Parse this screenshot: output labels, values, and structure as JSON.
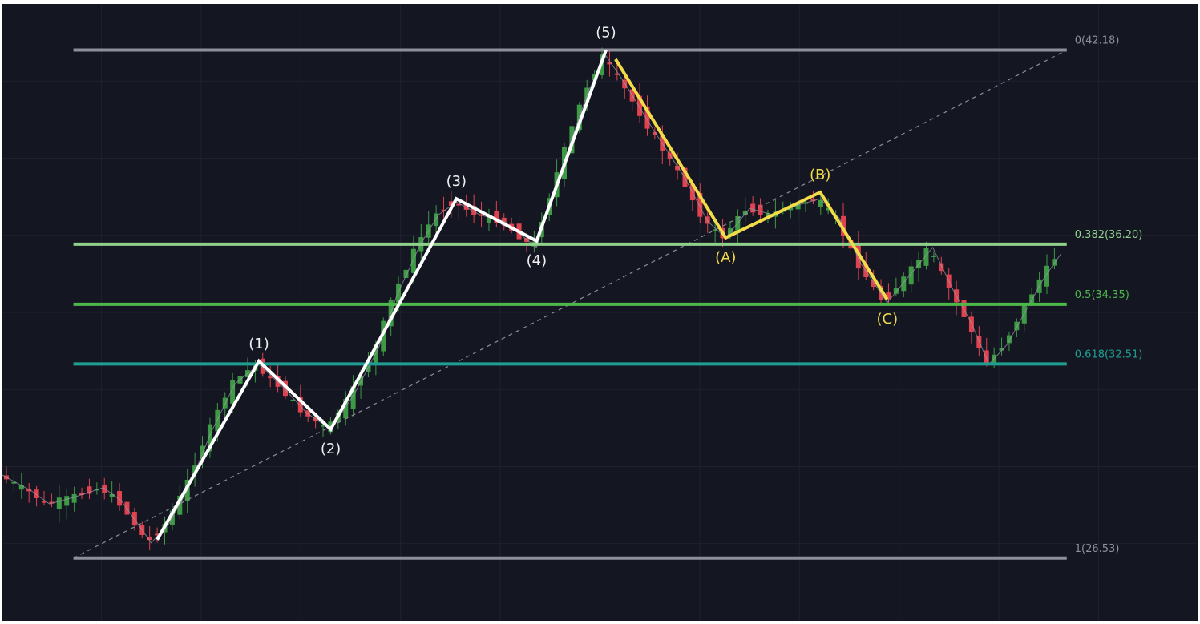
{
  "chart_data": {
    "type": "candlestick",
    "title": "",
    "xlabel": "",
    "ylabel": "",
    "ylim": [
      24.6,
      43.6
    ],
    "grid": true,
    "colors": {
      "background": "#141622",
      "gridline": "#1e2130",
      "candle_up": "#3f9a46",
      "candle_down": "#e0424f",
      "price_line": "#9a9cab",
      "impulse_wave": "#ffffff",
      "corrective_wave": "#f2dc4a",
      "fib_0": "#8e8f99",
      "fib_0382": "#8fd18b",
      "fib_05": "#4cb84a",
      "fib_0618": "#1f9e91",
      "fib_1": "#8e8f99",
      "trend_line": "#8a8c99",
      "label_light": "#f0f0f0",
      "label_yellow": "#f2dc4a"
    },
    "fib_levels": [
      {
        "key": "fib_0",
        "ratio": 0,
        "price": 42.18,
        "label": "0(42.18)"
      },
      {
        "key": "fib_0382",
        "ratio": 0.382,
        "price": 36.2,
        "label": "0.382(36.20)"
      },
      {
        "key": "fib_05",
        "ratio": 0.5,
        "price": 34.35,
        "label": "0.5(34.35)"
      },
      {
        "key": "fib_0618",
        "ratio": 0.618,
        "price": 32.51,
        "label": "0.618(32.51)"
      },
      {
        "key": "fib_1",
        "ratio": 1,
        "price": 26.53,
        "label": "1(26.53)"
      }
    ],
    "fib_span": [
      0.06,
      0.89
    ],
    "fib_trend_line": {
      "from": {
        "x": 0.06,
        "y": 26.53
      },
      "to": {
        "x": 0.89,
        "y": 42.18
      }
    },
    "impulse_wave": {
      "labels": [
        "(1)",
        "(2)",
        "(3)",
        "(4)",
        "(5)"
      ],
      "points": [
        {
          "x": 0.13,
          "y": 27.1
        },
        {
          "x": 0.215,
          "y": 32.6
        },
        {
          "x": 0.275,
          "y": 30.5
        },
        {
          "x": 0.38,
          "y": 37.6
        },
        {
          "x": 0.447,
          "y": 36.3
        },
        {
          "x": 0.505,
          "y": 42.18
        }
      ]
    },
    "corrective_wave": {
      "labels": [
        "(A)",
        "(B)",
        "(C)"
      ],
      "points": [
        {
          "x": 0.513,
          "y": 41.9
        },
        {
          "x": 0.605,
          "y": 36.4
        },
        {
          "x": 0.684,
          "y": 37.8
        },
        {
          "x": 0.74,
          "y": 34.5
        }
      ]
    },
    "price_path": [
      {
        "x": 0.0,
        "y": 29.1
      },
      {
        "x": 0.025,
        "y": 28.6
      },
      {
        "x": 0.04,
        "y": 28.2
      },
      {
        "x": 0.06,
        "y": 28.4
      },
      {
        "x": 0.085,
        "y": 28.7
      },
      {
        "x": 0.1,
        "y": 28.3
      },
      {
        "x": 0.125,
        "y": 27.0
      },
      {
        "x": 0.14,
        "y": 27.6
      },
      {
        "x": 0.155,
        "y": 28.6
      },
      {
        "x": 0.175,
        "y": 30.4
      },
      {
        "x": 0.195,
        "y": 31.9
      },
      {
        "x": 0.215,
        "y": 32.5
      },
      {
        "x": 0.235,
        "y": 31.8
      },
      {
        "x": 0.255,
        "y": 31.0
      },
      {
        "x": 0.275,
        "y": 30.5
      },
      {
        "x": 0.295,
        "y": 31.6
      },
      {
        "x": 0.315,
        "y": 33.0
      },
      {
        "x": 0.33,
        "y": 34.6
      },
      {
        "x": 0.35,
        "y": 36.2
      },
      {
        "x": 0.365,
        "y": 37.1
      },
      {
        "x": 0.38,
        "y": 37.5
      },
      {
        "x": 0.4,
        "y": 37.1
      },
      {
        "x": 0.42,
        "y": 36.9
      },
      {
        "x": 0.447,
        "y": 36.1
      },
      {
        "x": 0.46,
        "y": 37.6
      },
      {
        "x": 0.475,
        "y": 39.3
      },
      {
        "x": 0.49,
        "y": 40.9
      },
      {
        "x": 0.505,
        "y": 42.0
      },
      {
        "x": 0.52,
        "y": 41.2
      },
      {
        "x": 0.545,
        "y": 39.7
      },
      {
        "x": 0.57,
        "y": 38.3
      },
      {
        "x": 0.59,
        "y": 36.9
      },
      {
        "x": 0.605,
        "y": 36.4
      },
      {
        "x": 0.625,
        "y": 37.3
      },
      {
        "x": 0.645,
        "y": 37.1
      },
      {
        "x": 0.665,
        "y": 37.4
      },
      {
        "x": 0.684,
        "y": 37.6
      },
      {
        "x": 0.7,
        "y": 37.0
      },
      {
        "x": 0.718,
        "y": 35.6
      },
      {
        "x": 0.74,
        "y": 34.4
      },
      {
        "x": 0.76,
        "y": 35.3
      },
      {
        "x": 0.778,
        "y": 36.1
      },
      {
        "x": 0.795,
        "y": 34.8
      },
      {
        "x": 0.81,
        "y": 33.8
      },
      {
        "x": 0.825,
        "y": 32.5
      },
      {
        "x": 0.84,
        "y": 33.1
      },
      {
        "x": 0.855,
        "y": 34.1
      },
      {
        "x": 0.87,
        "y": 35.1
      },
      {
        "x": 0.885,
        "y": 35.9
      }
    ]
  }
}
